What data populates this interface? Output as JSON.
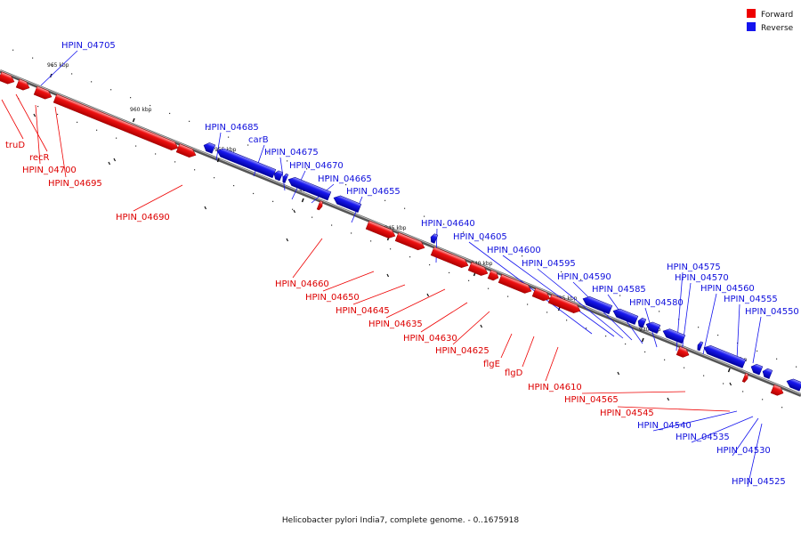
{
  "caption": "Helicobacter pylori India7, complete genome. - 0..1675918",
  "legend": {
    "forward": "Forward",
    "reverse": "Reverse",
    "forward_color": "#ee0000",
    "reverse_color": "#1414ee"
  },
  "ticks": [
    "965 kbp",
    "960 kbp",
    "955 kbp",
    "950 kbp",
    "945 kbp",
    "940 kbp",
    "935 kbp",
    "930 kbp",
    "925 kbp"
  ],
  "forward_labels": [
    "truD",
    "recR",
    "HPIN_04700",
    "HPIN_04695",
    "HPIN_04690",
    "HPIN_04660",
    "HPIN_04650",
    "HPIN_04645",
    "HPIN_04635",
    "HPIN_04630",
    "HPIN_04625",
    "flgE",
    "flgD",
    "HPIN_04610",
    "HPIN_04565",
    "HPIN_04545"
  ],
  "reverse_labels": [
    "HPIN_04705",
    "HPIN_04685",
    "carB",
    "HPIN_04675",
    "HPIN_04670",
    "HPIN_04665",
    "HPIN_04655",
    "HPIN_04640",
    "HPIN_04605",
    "HPIN_04600",
    "HPIN_04595",
    "HPIN_04590",
    "HPIN_04585",
    "HPIN_04580",
    "HPIN_04575",
    "HPIN_04570",
    "HPIN_04560",
    "HPIN_04555",
    "HPIN_04550",
    "HPIN_04540",
    "HPIN_04535",
    "HPIN_04530",
    "HPIN_04525"
  ]
}
